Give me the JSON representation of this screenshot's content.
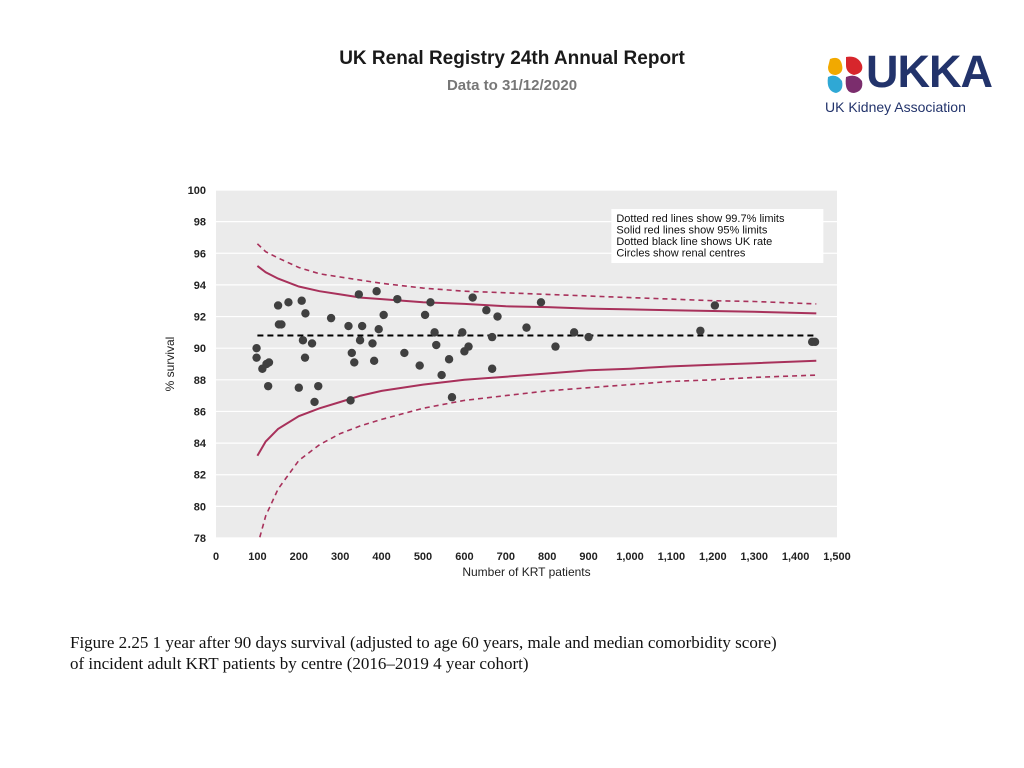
{
  "header": {
    "title": "UK Renal Registry 24th Annual Report",
    "subtitle": "Data to 31/12/2020"
  },
  "logo": {
    "text": "UKKA",
    "subtitle": "UK Kidney Association",
    "colors": [
      "#f2a900",
      "#d7262c",
      "#2fa8d5",
      "#7b2d6d",
      "#22336b"
    ]
  },
  "colors": {
    "plot_bg": "#ebebeb",
    "grid": "#ffffff",
    "limit_line": "#a8315b",
    "uk_rate_line": "#000000",
    "point": "#404040"
  },
  "chart_data": {
    "type": "scatter",
    "title": "",
    "xlabel": "Number of KRT patients",
    "ylabel": "% survival",
    "xlim": [
      0,
      1500
    ],
    "ylim": [
      78,
      100
    ],
    "x_ticks": [
      0,
      100,
      200,
      300,
      400,
      500,
      600,
      700,
      800,
      900,
      1000,
      1100,
      1200,
      1300,
      1400,
      1500
    ],
    "x_tick_labels": [
      "0",
      "100",
      "200",
      "300",
      "400",
      "500",
      "600",
      "700",
      "800",
      "900",
      "1,000",
      "1,100",
      "1,200",
      "1,300",
      "1,400",
      "1,500"
    ],
    "y_ticks": [
      78,
      80,
      82,
      84,
      86,
      88,
      90,
      92,
      94,
      96,
      98,
      100
    ],
    "grid": true,
    "legend_position": "top-right",
    "legend": [
      "Dotted red lines show 99.7% limits",
      "Solid red lines show 95% limits",
      "Dotted black line shows UK rate",
      "Circles show renal centres"
    ],
    "uk_rate": 90.8,
    "limits_n": [
      100,
      120,
      150,
      200,
      250,
      300,
      350,
      400,
      500,
      600,
      700,
      800,
      900,
      1000,
      1100,
      1200,
      1300,
      1450
    ],
    "upper_95": [
      95.2,
      94.8,
      94.4,
      93.9,
      93.6,
      93.4,
      93.2,
      93.1,
      92.9,
      92.8,
      92.65,
      92.6,
      92.5,
      92.45,
      92.4,
      92.35,
      92.3,
      92.2
    ],
    "lower_95": [
      83.2,
      84.1,
      84.9,
      85.7,
      86.2,
      86.6,
      87.0,
      87.3,
      87.7,
      88.0,
      88.2,
      88.4,
      88.6,
      88.7,
      88.85,
      88.95,
      89.05,
      89.2
    ],
    "upper_997": [
      96.6,
      96.1,
      95.7,
      95.1,
      94.7,
      94.5,
      94.3,
      94.1,
      93.8,
      93.6,
      93.5,
      93.4,
      93.3,
      93.2,
      93.1,
      93.0,
      92.95,
      92.8
    ],
    "lower_997": [
      77.5,
      79.4,
      81.1,
      82.9,
      83.9,
      84.6,
      85.1,
      85.5,
      86.2,
      86.7,
      87.0,
      87.3,
      87.5,
      87.7,
      87.9,
      88.0,
      88.15,
      88.3
    ],
    "points": [
      {
        "x": 98,
        "y": 90.0
      },
      {
        "x": 98,
        "y": 89.4
      },
      {
        "x": 112,
        "y": 88.7
      },
      {
        "x": 122,
        "y": 89.0
      },
      {
        "x": 128,
        "y": 89.1
      },
      {
        "x": 126,
        "y": 87.6
      },
      {
        "x": 150,
        "y": 92.7
      },
      {
        "x": 152,
        "y": 91.5
      },
      {
        "x": 158,
        "y": 91.5
      },
      {
        "x": 175,
        "y": 92.9
      },
      {
        "x": 200,
        "y": 87.5
      },
      {
        "x": 207,
        "y": 93.0
      },
      {
        "x": 210,
        "y": 90.5
      },
      {
        "x": 216,
        "y": 92.2
      },
      {
        "x": 215,
        "y": 89.4
      },
      {
        "x": 232,
        "y": 90.3
      },
      {
        "x": 238,
        "y": 86.6
      },
      {
        "x": 247,
        "y": 87.6
      },
      {
        "x": 278,
        "y": 91.9
      },
      {
        "x": 320,
        "y": 91.4
      },
      {
        "x": 325,
        "y": 86.7
      },
      {
        "x": 328,
        "y": 89.7
      },
      {
        "x": 334,
        "y": 89.1
      },
      {
        "x": 345,
        "y": 93.4
      },
      {
        "x": 348,
        "y": 90.5
      },
      {
        "x": 353,
        "y": 91.4
      },
      {
        "x": 378,
        "y": 90.3
      },
      {
        "x": 382,
        "y": 89.2
      },
      {
        "x": 388,
        "y": 93.6
      },
      {
        "x": 393,
        "y": 91.2
      },
      {
        "x": 405,
        "y": 92.1
      },
      {
        "x": 438,
        "y": 93.1
      },
      {
        "x": 455,
        "y": 89.7
      },
      {
        "x": 492,
        "y": 88.9
      },
      {
        "x": 505,
        "y": 92.1
      },
      {
        "x": 518,
        "y": 92.9
      },
      {
        "x": 528,
        "y": 91.0
      },
      {
        "x": 532,
        "y": 90.2
      },
      {
        "x": 545,
        "y": 88.3
      },
      {
        "x": 563,
        "y": 89.3
      },
      {
        "x": 570,
        "y": 86.9
      },
      {
        "x": 595,
        "y": 91.0
      },
      {
        "x": 600,
        "y": 89.8
      },
      {
        "x": 610,
        "y": 90.1
      },
      {
        "x": 620,
        "y": 93.2
      },
      {
        "x": 653,
        "y": 92.4
      },
      {
        "x": 667,
        "y": 90.7
      },
      {
        "x": 667,
        "y": 88.7
      },
      {
        "x": 680,
        "y": 92.0
      },
      {
        "x": 750,
        "y": 91.3
      },
      {
        "x": 785,
        "y": 92.9
      },
      {
        "x": 820,
        "y": 90.1
      },
      {
        "x": 865,
        "y": 91.0
      },
      {
        "x": 900,
        "y": 90.7
      },
      {
        "x": 1170,
        "y": 91.1
      },
      {
        "x": 1205,
        "y": 92.7
      },
      {
        "x": 1440,
        "y": 90.4
      },
      {
        "x": 1447,
        "y": 90.4
      }
    ]
  },
  "caption": {
    "line1": "Figure 2.25 1 year after 90 days survival (adjusted to age 60 years, male and median comorbidity score)",
    "line2": "of incident adult KRT patients by centre (2016–2019 4 year cohort)"
  }
}
